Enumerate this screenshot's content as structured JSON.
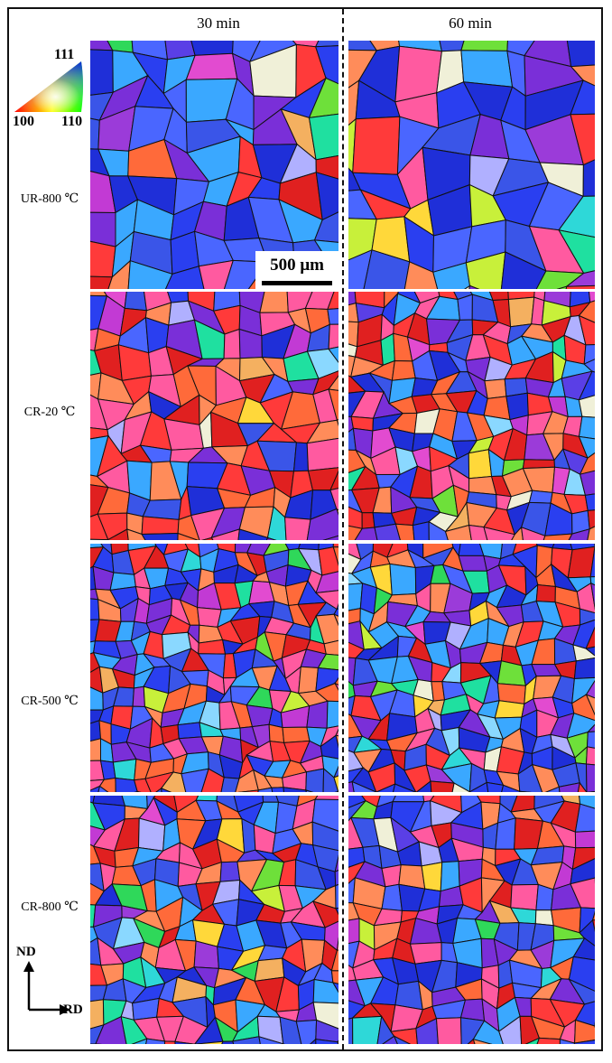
{
  "columns": [
    "30 min",
    "60 min"
  ],
  "rows": [
    "UR-800 ℃",
    "CR-20 ℃",
    "CR-500 ℃",
    "CR-800 ℃"
  ],
  "legend": {
    "top": "111",
    "left": "100",
    "right": "110"
  },
  "scale_bar": "500 μm",
  "axes": {
    "vertical": "ND",
    "horizontal": "RD"
  },
  "colors": {
    "palette": [
      "#1f2fd8",
      "#2a3ff0",
      "#3a55e8",
      "#4a66ff",
      "#5a3fe6",
      "#7a2fd8",
      "#9b3bd9",
      "#c23ad4",
      "#e24bd0",
      "#ff5aa0",
      "#ff3a3a",
      "#e02020",
      "#ff6a3a",
      "#ff8c5a",
      "#f4b060",
      "#ffd83a",
      "#c8f03a",
      "#6ee03a",
      "#2fd85a",
      "#1fe0a0",
      "#2ed8d8",
      "#3aa8ff",
      "#8ad8ff",
      "#f0f0d8",
      "#b0b0ff"
    ],
    "grain_boundary": "#111111"
  }
}
